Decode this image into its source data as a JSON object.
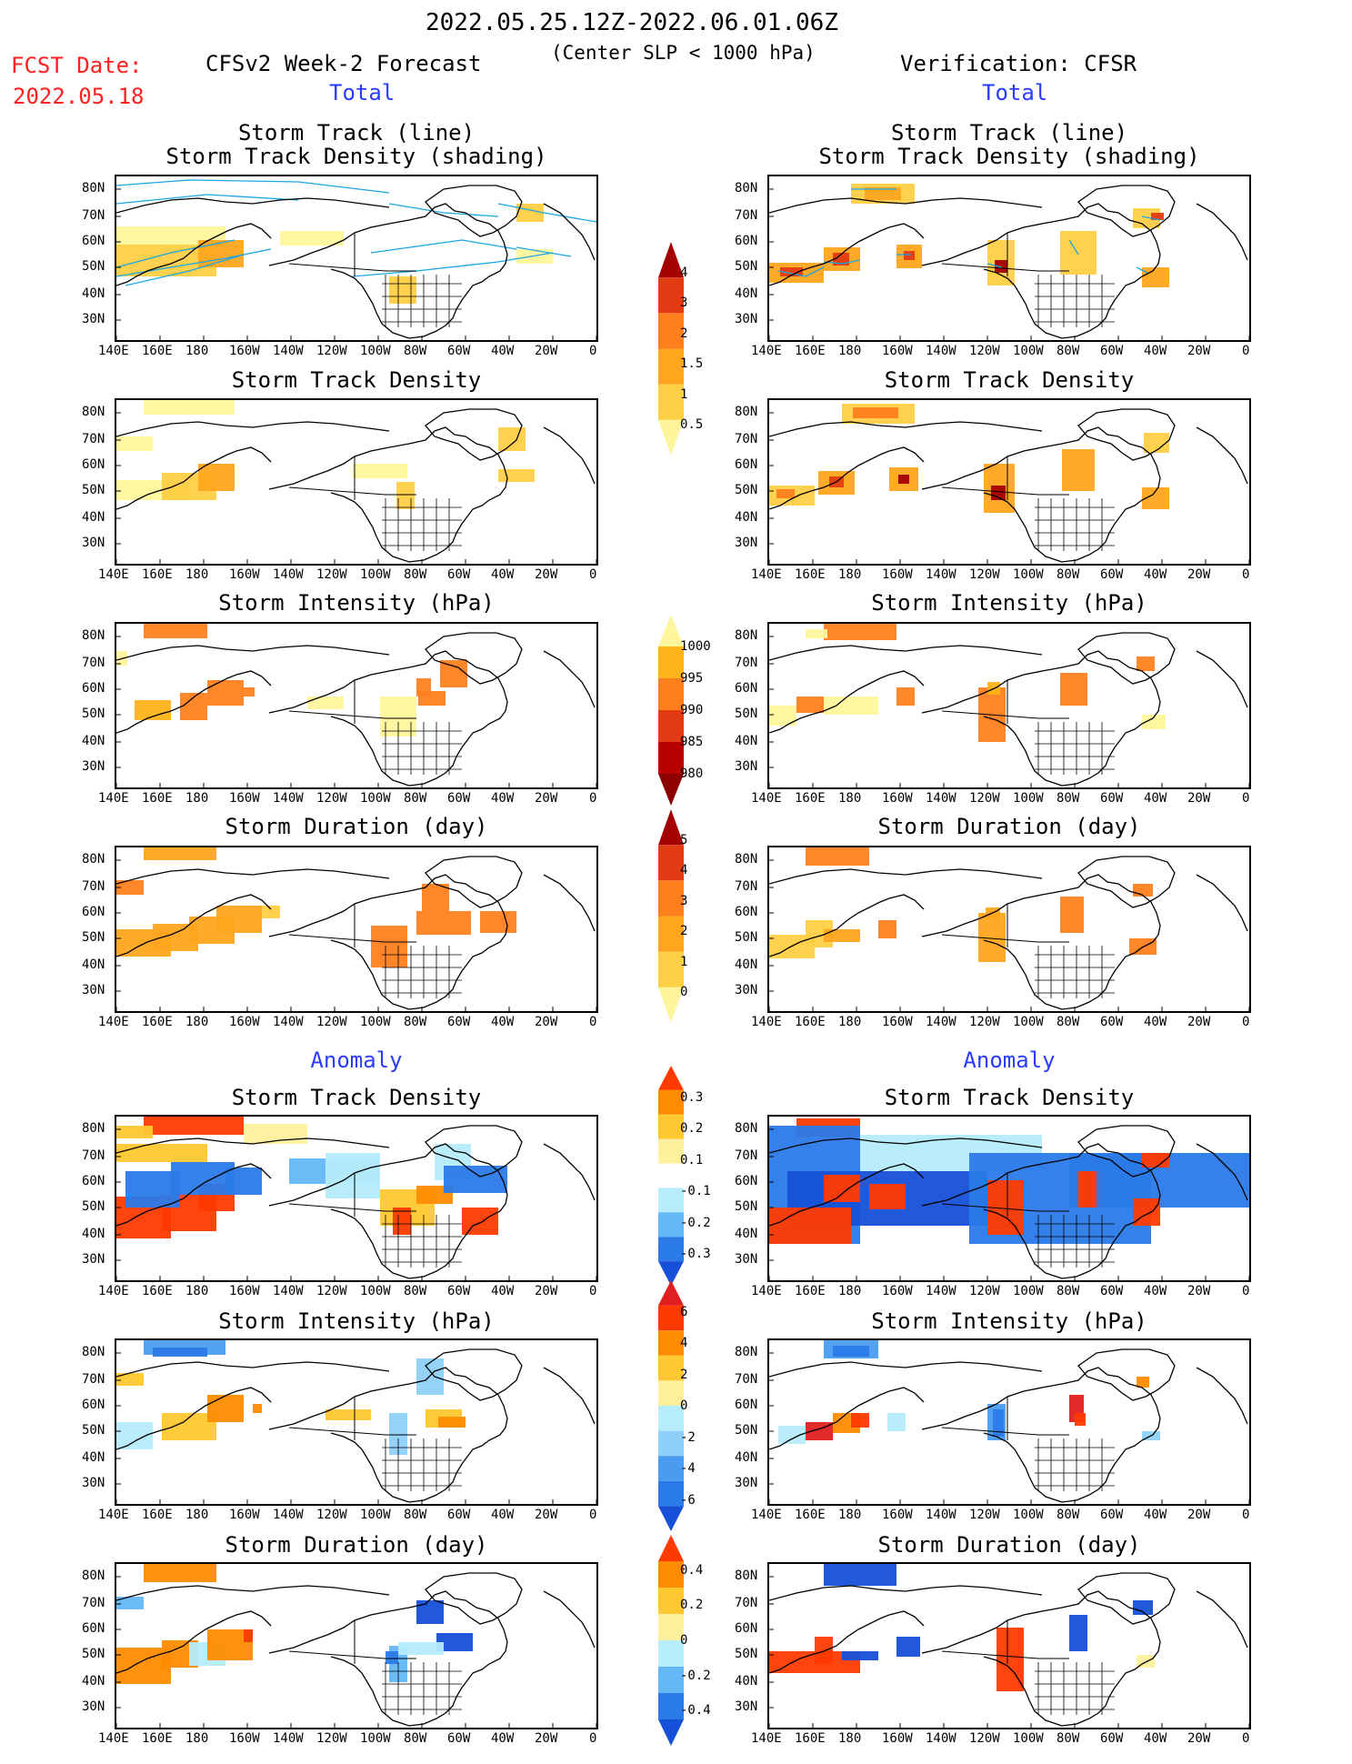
{
  "header": {
    "period": "2022.05.25.12Z-2022.06.01.06Z",
    "criterion": "(Center SLP < 1000 hPa)",
    "fcst_label": "FCST Date:",
    "fcst_date": "2022.05.18",
    "model": "CFSv2 Week-2 Forecast",
    "verification": "Verification: CFSR"
  },
  "sections": {
    "total": "Total",
    "anomaly": "Anomaly"
  },
  "panel_titles": {
    "track": [
      "Storm Track (line)",
      "Storm Track Density (shading)"
    ],
    "density": "Storm Track Density",
    "intensity": "Storm Intensity (hPa)",
    "duration": "Storm Duration (day)"
  },
  "axes": {
    "lon_ticks": [
      "140E",
      "160E",
      "180",
      "160W",
      "140W",
      "120W",
      "100W",
      "80W",
      "60W",
      "40W",
      "20W",
      "0"
    ],
    "lat_ticks": [
      "80N",
      "70N",
      "60N",
      "50N",
      "40N",
      "30N"
    ]
  },
  "colorbars": {
    "density_total": {
      "labels": [
        "4",
        "3",
        "2",
        "1.5",
        "1",
        "0.5"
      ],
      "colors": [
        "#a50000",
        "#e23a12",
        "#ff7f1e",
        "#ffa51e",
        "#ffcf45",
        "#fff59d"
      ]
    },
    "intensity_total": {
      "labels": [
        "1000",
        "995",
        "990",
        "985",
        "980"
      ],
      "colors": [
        "#fff59d",
        "#ffb319",
        "#ff7f1e",
        "#e23a12",
        "#b80000",
        "#8c0000"
      ]
    },
    "duration_total": {
      "labels": [
        "5",
        "4",
        "3",
        "2",
        "1",
        "0"
      ],
      "colors": [
        "#a50000",
        "#e23a12",
        "#ff7f1e",
        "#ffa51e",
        "#ffcf45",
        "#fff59d"
      ]
    },
    "density_anom": {
      "labels": [
        "0.3",
        "0.2",
        "0.1",
        "-0.1",
        "-0.2",
        "-0.3"
      ],
      "colors": [
        "#ff3a00",
        "#ff8c00",
        "#ffc830",
        "#fff09d",
        "#ffffff",
        "#b6ecfb",
        "#63b8f5",
        "#2a7ae8",
        "#1650d8"
      ]
    },
    "intensity_anom": {
      "labels": [
        "6",
        "4",
        "2",
        "0",
        "-2",
        "-4",
        "-6"
      ],
      "colors": [
        "#e02020",
        "#ff3a00",
        "#ff8c00",
        "#ffc830",
        "#fff09d",
        "#b6ecfb",
        "#8fd0f8",
        "#4a9cf0",
        "#2a7ae8",
        "#1650d8"
      ]
    },
    "duration_anom": {
      "labels": [
        "0.4",
        "0.2",
        "0",
        "-0.2",
        "-0.4"
      ],
      "colors": [
        "#ff3a00",
        "#ff8c00",
        "#ffc830",
        "#fff09d",
        "#b6ecfb",
        "#63b8f5",
        "#2a7ae8",
        "#1650d8"
      ]
    }
  },
  "colors": {
    "track_line": "#1aa6e6",
    "coast": "#000000"
  }
}
